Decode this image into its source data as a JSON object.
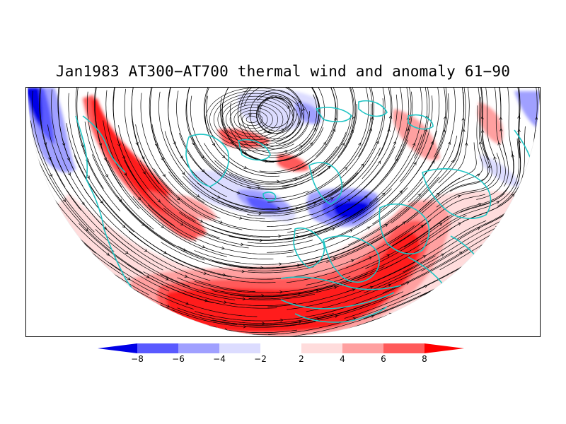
{
  "title": "Jan1983 AT300−AT700 thermal wind and anomaly 61−90",
  "map": {
    "projection": "polar-stereographic-half",
    "layers": [
      "temperature-anomaly-fill",
      "thermal-wind-streamlines",
      "coastlines"
    ],
    "coastline_color": "#1fc4c4",
    "streamline_color": "#000000"
  },
  "colorbar": {
    "levels": [
      {
        "value": "-8",
        "color": "#0000e6"
      },
      {
        "value": "-6",
        "color": "#5a5aff"
      },
      {
        "value": "-4",
        "color": "#a0a0ff"
      },
      {
        "value": "-2",
        "color": "#dcdcff"
      },
      {
        "value": "",
        "color": "#ffffff"
      },
      {
        "value": "2",
        "color": "#ffdcdc"
      },
      {
        "value": "4",
        "color": "#ffa0a0"
      },
      {
        "value": "6",
        "color": "#ff5a5a"
      },
      {
        "value": "8",
        "color": "#ff0000"
      }
    ],
    "labels": [
      "−8",
      "−6",
      "−4",
      "−2",
      "2",
      "4",
      "6",
      "8"
    ],
    "min_arrow_color": "#0000e6",
    "max_arrow_color": "#ff0000"
  }
}
